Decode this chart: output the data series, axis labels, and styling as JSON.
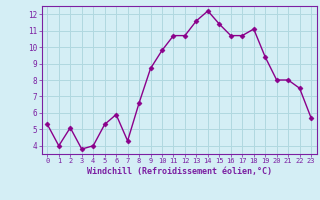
{
  "x": [
    0,
    1,
    2,
    3,
    4,
    5,
    6,
    7,
    8,
    9,
    10,
    11,
    12,
    13,
    14,
    15,
    16,
    17,
    18,
    19,
    20,
    21,
    22,
    23
  ],
  "y": [
    5.3,
    4.0,
    5.1,
    3.8,
    4.0,
    5.3,
    5.9,
    4.3,
    6.6,
    8.7,
    9.8,
    10.7,
    10.7,
    11.6,
    12.2,
    11.4,
    10.7,
    10.7,
    11.1,
    9.4,
    8.0,
    8.0,
    7.5,
    5.7
  ],
  "line_color": "#8B008B",
  "marker": "D",
  "marker_color": "#8B008B",
  "xlabel": "Windchill (Refroidissement éolien,°C)",
  "ylabel": "",
  "ylim": [
    3.5,
    12.5
  ],
  "yticks": [
    4,
    5,
    6,
    7,
    8,
    9,
    10,
    11,
    12
  ],
  "xticks": [
    0,
    1,
    2,
    3,
    4,
    5,
    6,
    7,
    8,
    9,
    10,
    11,
    12,
    13,
    14,
    15,
    16,
    17,
    18,
    19,
    20,
    21,
    22,
    23
  ],
  "background_color": "#d4eef5",
  "grid_color": "#b0d8e0",
  "tick_color": "#7B1FA2",
  "label_color": "#7B1FA2",
  "border_color": "#7B1FA2",
  "xlim": [
    -0.5,
    23.5
  ]
}
